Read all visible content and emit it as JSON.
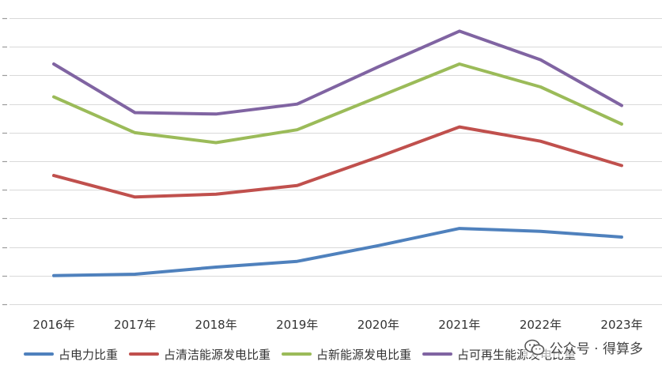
{
  "chart_data": {
    "type": "line",
    "categories": [
      "2016年",
      "2017年",
      "2018年",
      "2019年",
      "2020年",
      "2021年",
      "2022年",
      "2023年"
    ],
    "series": [
      {
        "name": "占电力比重",
        "color": "#4F81BD",
        "values": [
          1.0,
          1.05,
          1.3,
          1.5,
          2.05,
          2.65,
          2.55,
          2.35
        ]
      },
      {
        "name": "占清洁能源发电比重",
        "color": "#C0504D",
        "values": [
          4.5,
          3.75,
          3.85,
          4.15,
          5.15,
          6.2,
          5.7,
          4.85
        ]
      },
      {
        "name": "占新能源发电比重",
        "color": "#9BBB59",
        "values": [
          7.25,
          6.0,
          5.65,
          6.1,
          7.25,
          8.4,
          7.6,
          6.3
        ]
      },
      {
        "name": "占可再生能源发电比重",
        "color": "#8064A2",
        "values": [
          8.4,
          6.7,
          6.65,
          7.0,
          8.3,
          9.55,
          8.55,
          6.95
        ]
      }
    ],
    "ylim": [
      0,
      10.5
    ],
    "grid": true,
    "legend": "bottom"
  },
  "watermark": {
    "text": "公众号 · 得算多",
    "icon": "wechat-icon"
  }
}
